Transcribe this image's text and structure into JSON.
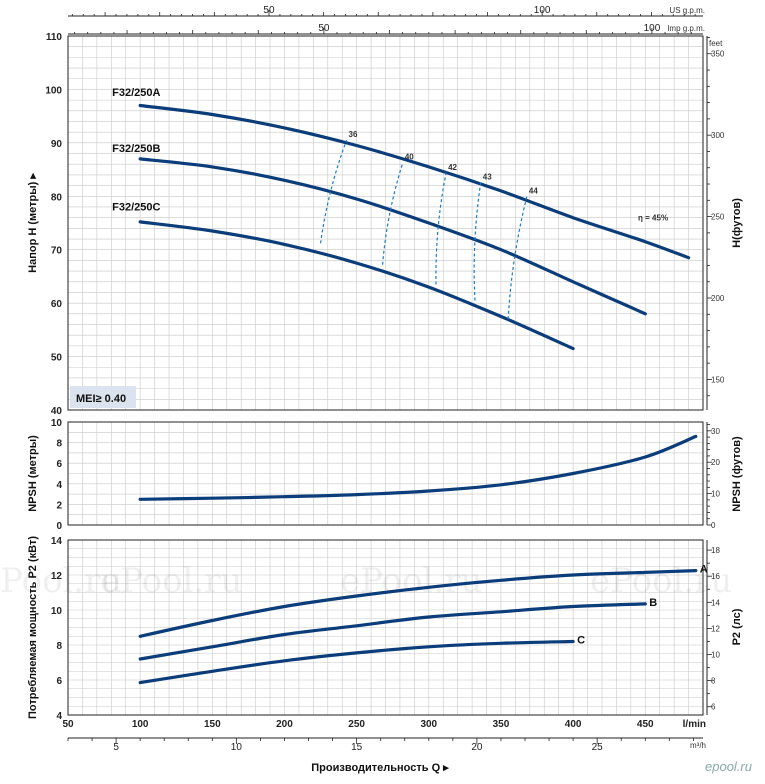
{
  "chart_data": [
    {
      "type": "line",
      "panel": "head",
      "ylabel": "Напор Н (метры)",
      "ylabel_right": "Н(футов)",
      "right_unit": "feet",
      "xlim": [
        50,
        490
      ],
      "ylim": [
        40,
        110
      ],
      "yticks": [
        40,
        50,
        60,
        70,
        80,
        90,
        100,
        110
      ],
      "yticks_right": [
        150,
        200,
        250,
        300,
        350
      ],
      "series": [
        {
          "name": "F32/250A",
          "label_pos": [
            100,
            99
          ],
          "x": [
            100,
            150,
            200,
            250,
            300,
            350,
            400,
            450,
            480
          ],
          "y": [
            97,
            95.3,
            92.8,
            89.5,
            85.5,
            81,
            76,
            71.5,
            68.5
          ]
        },
        {
          "name": "F32/250B",
          "label_pos": [
            100,
            88.5
          ],
          "x": [
            100,
            150,
            200,
            250,
            300,
            350,
            400,
            450
          ],
          "y": [
            87,
            85.5,
            83,
            79.5,
            75,
            70,
            64,
            58
          ]
        },
        {
          "name": "F32/250C",
          "label_pos": [
            100,
            77.5
          ],
          "x": [
            100,
            150,
            200,
            250,
            300,
            350,
            400
          ],
          "y": [
            75.2,
            73.5,
            71,
            67.5,
            63,
            57.5,
            51.5
          ]
        }
      ],
      "efficiency_lines": [
        {
          "label": "36",
          "points": [
            [
              225,
              71.2
            ],
            [
              243,
              90.5
            ]
          ]
        },
        {
          "label": "40",
          "points": [
            [
              268,
              67.2
            ],
            [
              282,
              86.3
            ]
          ]
        },
        {
          "label": "42",
          "points": [
            [
              305,
              63.5
            ],
            [
              312,
              84.4
            ]
          ]
        },
        {
          "label": "43",
          "points": [
            [
              332,
              60.5
            ],
            [
              336,
              82.6
            ]
          ]
        },
        {
          "label": "44",
          "points": [
            [
              355,
              57
            ],
            [
              368,
              80
            ]
          ]
        }
      ],
      "efficiency_note": "η = 45%",
      "badge": "MEI≥ 0.40"
    },
    {
      "type": "line",
      "panel": "npsh",
      "ylabel": "NPSH (метры)",
      "ylabel_right": "NPSH (футов)",
      "ylim": [
        0,
        10
      ],
      "yticks": [
        0,
        2,
        4,
        6,
        8,
        10
      ],
      "yticks_right": [
        0,
        10,
        20,
        30
      ],
      "series": [
        {
          "x": [
            100,
            150,
            200,
            250,
            300,
            350,
            400,
            450,
            485
          ],
          "y": [
            2.5,
            2.6,
            2.75,
            2.95,
            3.3,
            3.9,
            5.0,
            6.6,
            8.6
          ]
        }
      ]
    },
    {
      "type": "line",
      "panel": "power",
      "ylabel": "Потребляемая мощность Р2 (кВт)",
      "ylabel_right": "Р2 (лс)",
      "xlabel": "Производительность Q",
      "ylim": [
        4,
        14
      ],
      "yticks": [
        4,
        6,
        8,
        10,
        12,
        14
      ],
      "yticks_right": [
        6,
        8,
        10,
        12,
        14,
        16,
        18
      ],
      "series": [
        {
          "name": "A",
          "x": [
            100,
            150,
            200,
            250,
            300,
            350,
            400,
            450,
            485
          ],
          "y": [
            8.5,
            9.4,
            10.2,
            10.8,
            11.3,
            11.7,
            12.0,
            12.15,
            12.25
          ]
        },
        {
          "name": "B",
          "x": [
            100,
            150,
            200,
            250,
            300,
            350,
            400,
            450
          ],
          "y": [
            7.2,
            7.9,
            8.6,
            9.1,
            9.6,
            9.9,
            10.2,
            10.35
          ]
        },
        {
          "name": "C",
          "x": [
            100,
            150,
            200,
            250,
            300,
            350,
            400
          ],
          "y": [
            5.85,
            6.5,
            7.1,
            7.55,
            7.9,
            8.1,
            8.2
          ]
        }
      ]
    }
  ],
  "axes": {
    "lmin_unit": "l/min",
    "lmin_ticks": [
      50,
      100,
      150,
      200,
      250,
      300,
      350,
      400,
      450
    ],
    "m3h_unit": "m³/h",
    "m3h_ticks": [
      5,
      10,
      15,
      20,
      25
    ],
    "us_unit": "US g.p.m.",
    "us_ticks": [
      50,
      100
    ],
    "imp_unit": "Imp g.p.m.",
    "imp_ticks": [
      50,
      100
    ]
  },
  "watermark": "ePool.ru",
  "logo": "epool.ru",
  "colors": {
    "curve": "#0b3d7a",
    "efficiency": "#1a7cc8",
    "badge_bg": "#dbe3ee"
  }
}
